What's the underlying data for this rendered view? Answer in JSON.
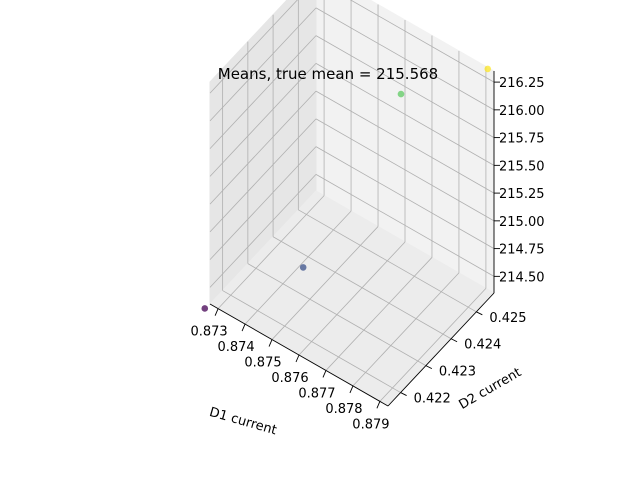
{
  "chart_data": {
    "type": "scatter",
    "projection": "3d",
    "title": "Means, true mean = 215.568",
    "xlabel": "D1 current",
    "ylabel": "D2 current",
    "zlabel": "",
    "x_ticks": [
      "0.873",
      "0.874",
      "0.875",
      "0.876",
      "0.877",
      "0.878",
      "0.879"
    ],
    "y_ticks": [
      "0.422",
      "0.423",
      "0.424",
      "0.425"
    ],
    "z_ticks": [
      "214.50",
      "214.75",
      "215.00",
      "215.25",
      "215.50",
      "215.75",
      "216.00",
      "216.25"
    ],
    "xlim": [
      0.8727,
      0.8793
    ],
    "ylim": [
      0.4215,
      0.4257
    ],
    "zlim": [
      214.35,
      216.35
    ],
    "grid": true,
    "colormap": "viridis",
    "points": [
      {
        "x": 0.8726,
        "y": 0.4214,
        "z": 214.32,
        "color": "#440154"
      },
      {
        "x": 0.8755,
        "y": 0.4222,
        "z": 214.9,
        "color": "#3b528b"
      },
      {
        "x": 0.8766,
        "y": 0.4249,
        "z": 215.96,
        "color": "#5ec962"
      },
      {
        "x": 0.8786,
        "y": 0.4262,
        "z": 216.15,
        "color": "#fde725"
      }
    ]
  }
}
